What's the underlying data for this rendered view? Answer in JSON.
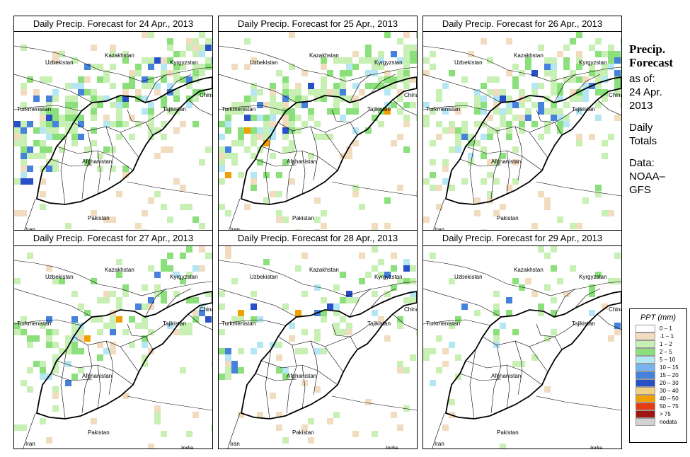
{
  "panels": [
    {
      "title": "Daily Precip. Forecast for  24 Apr., 2013"
    },
    {
      "title": "Daily Precip. Forecast for  25 Apr., 2013"
    },
    {
      "title": "Daily Precip. Forecast for  26 Apr., 2013"
    },
    {
      "title": "Daily Precip. Forecast for  27 Apr., 2013"
    },
    {
      "title": "Daily Precip. Forecast for  28 Apr., 2013"
    },
    {
      "title": "Daily Precip. Forecast for  29 Apr., 2013"
    }
  ],
  "map_labels": {
    "kazakhstan": "Kazakhstan",
    "uzbekistan": "Uzbekistan",
    "kyrgyzstan": "Kyrgyzstan",
    "china": "China",
    "turkmenistan": "Turkmenistan",
    "tajikistan": "Tajikistan",
    "afghanistan": "Afghanistan",
    "pakistan": "Pakistan",
    "iran": "Iran",
    "india": "India"
  },
  "side": {
    "title_line1": "Precip.",
    "title_line2": "Forecast",
    "asof_line1": "as of:",
    "asof_line2": "24 Apr.",
    "asof_line3": "2013",
    "totals_line1": "Daily",
    "totals_line2": "Totals",
    "data_line1": "Data:",
    "data_line2": "NOAA–",
    "data_line3": "GFS"
  },
  "legend": {
    "title": "PPT (mm)",
    "items": [
      {
        "label": "0 – 1",
        "color": "#ffffff"
      },
      {
        "label": ".1 – 1",
        "color": "#f2dcc0"
      },
      {
        "label": "1 – 2",
        "color": "#c8f0b4"
      },
      {
        "label": "2 – 5",
        "color": "#8ce07c"
      },
      {
        "label": "5 – 10",
        "color": "#b4e6f4"
      },
      {
        "label": "10 – 15",
        "color": "#78b4f0"
      },
      {
        "label": "15 – 20",
        "color": "#4682dc"
      },
      {
        "label": "20 – 30",
        "color": "#2850c8"
      },
      {
        "label": "30 – 40",
        "color": "#f0d282"
      },
      {
        "label": "40 – 50",
        "color": "#f0a000"
      },
      {
        "label": "50 – 75",
        "color": "#e63c14"
      },
      {
        "label": "> 75",
        "color": "#a01414"
      },
      {
        "label": "nodata",
        "color": "#d2d2d2"
      }
    ]
  }
}
